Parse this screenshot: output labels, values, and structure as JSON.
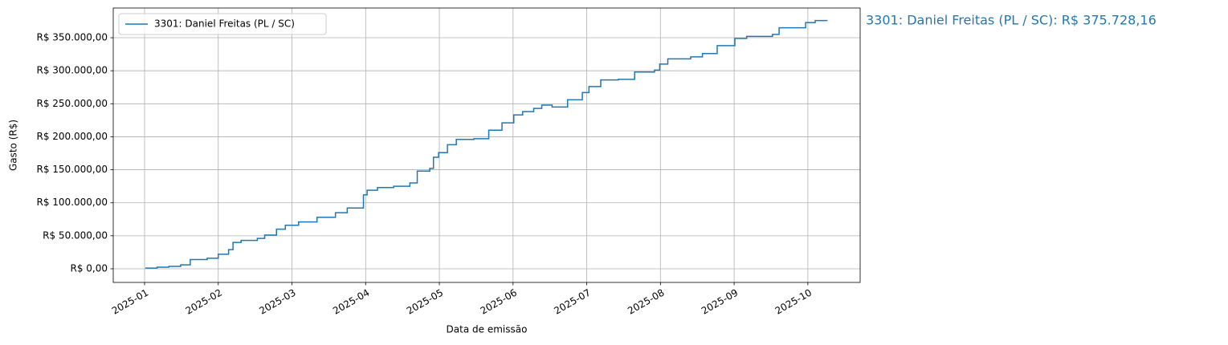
{
  "chart_data": {
    "type": "line",
    "drawstyle": "steps-post",
    "xlabel": "Data de emissão",
    "ylabel": "Gasto (R$)",
    "annotation": "3301: Daniel Freitas (PL / SC): R$ 375.728,16",
    "grid": true,
    "legend": "upper left",
    "xlim": [
      0.575,
      10.71
    ],
    "xticks": [
      {
        "value": 1,
        "label": "2025-01"
      },
      {
        "value": 2,
        "label": "2025-02"
      },
      {
        "value": 3,
        "label": "2025-03"
      },
      {
        "value": 4,
        "label": "2025-04"
      },
      {
        "value": 5,
        "label": "2025-05"
      },
      {
        "value": 6,
        "label": "2025-06"
      },
      {
        "value": 7,
        "label": "2025-07"
      },
      {
        "value": 8,
        "label": "2025-08"
      },
      {
        "value": 9,
        "label": "2025-09"
      },
      {
        "value": 10,
        "label": "2025-10"
      }
    ],
    "ylim": [
      -20660,
      395000
    ],
    "yticks": [
      {
        "value": 0,
        "label": "R$ 0,00"
      },
      {
        "value": 50000,
        "label": "R$ 50.000,00"
      },
      {
        "value": 100000,
        "label": "R$ 100.000,00"
      },
      {
        "value": 150000,
        "label": "R$ 150.000,00"
      },
      {
        "value": 200000,
        "label": "R$ 200.000,00"
      },
      {
        "value": 250000,
        "label": "R$ 250.000,00"
      },
      {
        "value": 300000,
        "label": "R$ 300.000,00"
      },
      {
        "value": 350000,
        "label": "R$ 350.000,00"
      }
    ],
    "x": [
      1.01,
      1.17,
      1.33,
      1.49,
      1.62,
      1.85,
      2.0,
      2.14,
      2.2,
      2.31,
      2.53,
      2.63,
      2.79,
      2.91,
      3.09,
      3.34,
      3.59,
      3.75,
      3.97,
      4.02,
      4.16,
      4.38,
      4.6,
      4.7,
      4.87,
      4.92,
      4.99,
      5.11,
      5.23,
      5.47,
      5.67,
      5.85,
      6.01,
      6.13,
      6.28,
      6.39,
      6.53,
      6.74,
      6.94,
      7.03,
      7.19,
      7.43,
      7.65,
      7.92,
      7.99,
      8.1,
      8.41,
      8.57,
      8.77,
      9.01,
      9.17,
      9.52,
      9.61,
      9.97,
      10.1,
      10.26
    ],
    "series": [
      {
        "name": "3301: Daniel Freitas (PL / SC)",
        "color": "#1f77b4",
        "values": [
          1000,
          2400,
          3600,
          6000,
          14000,
          16000,
          22000,
          29000,
          40000,
          43000,
          46000,
          51000,
          60000,
          66000,
          71000,
          78000,
          85000,
          92000,
          112000,
          119000,
          123000,
          125000,
          130000,
          148000,
          152000,
          169000,
          176000,
          188000,
          196000,
          197000,
          210000,
          221000,
          233000,
          238000,
          243000,
          248000,
          245000,
          256000,
          267000,
          276000,
          286000,
          287000,
          298000,
          301000,
          310000,
          318000,
          321000,
          326000,
          338000,
          349000,
          352000,
          355000,
          365000,
          373000,
          376000,
          375728.16
        ]
      }
    ]
  }
}
